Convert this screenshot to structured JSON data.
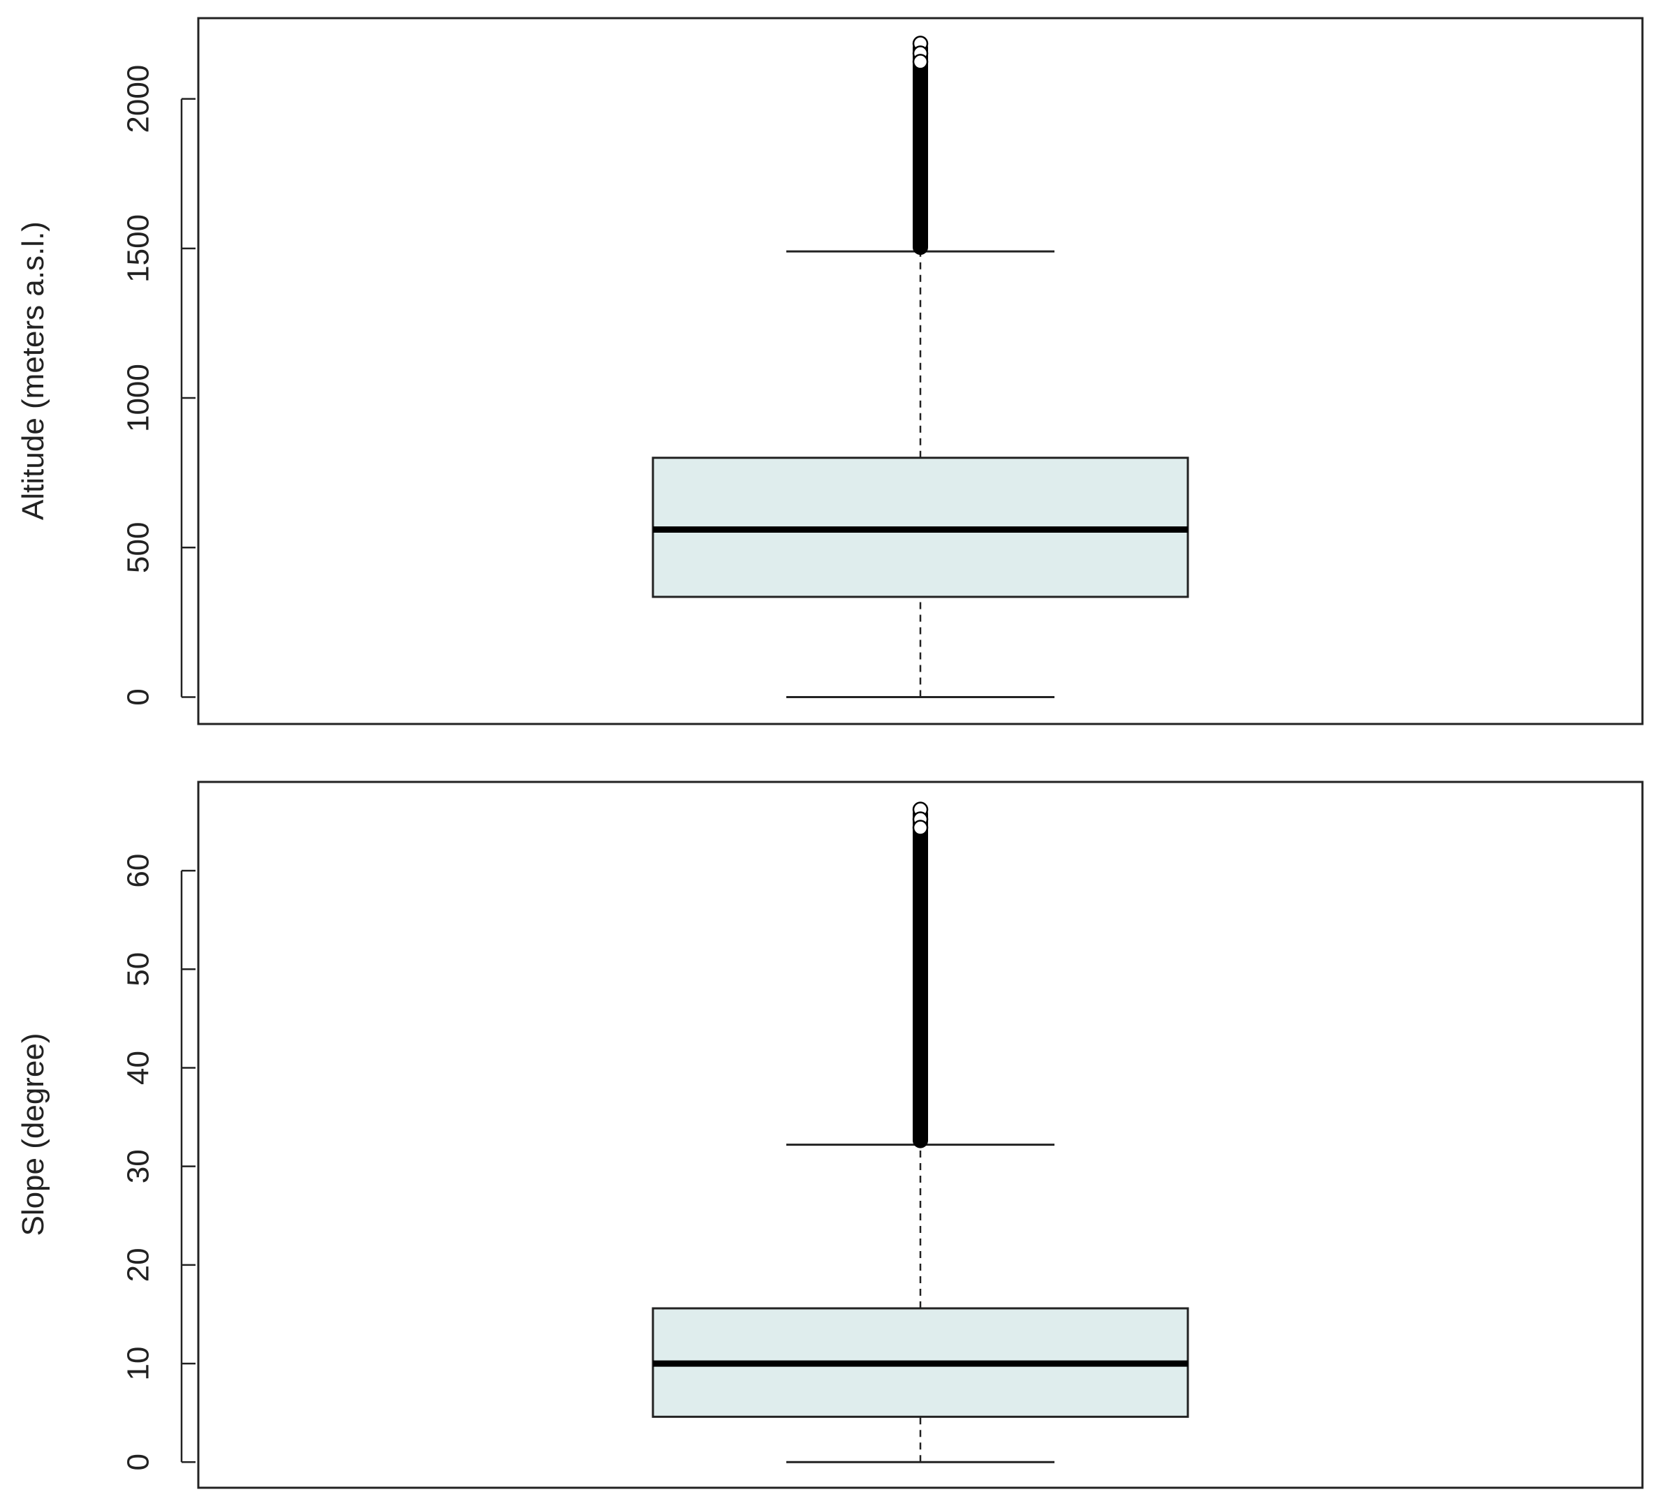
{
  "chart_data": [
    {
      "type": "boxplot",
      "title": "",
      "xlabel": "",
      "ylabel": "Altitude (meters a.s.l.)",
      "ylim": [
        -90,
        2270
      ],
      "yticks": [
        0,
        500,
        1000,
        1500,
        2000
      ],
      "ytick_labels": [
        "0",
        "500",
        "1000",
        "1500",
        "2000"
      ],
      "grid": false,
      "box": {
        "whisker_low": 0,
        "q1": 335,
        "median": 560,
        "q3": 800,
        "whisker_high": 1490,
        "outliers_low": 1490,
        "outliers_high": 2185,
        "fill": "#dfeded"
      }
    },
    {
      "type": "boxplot",
      "title": "",
      "xlabel": "",
      "ylabel": "Slope (degree)",
      "ylim": [
        -2.6,
        69
      ],
      "yticks": [
        0,
        10,
        20,
        30,
        40,
        50,
        60
      ],
      "ytick_labels": [
        "0",
        "10",
        "20",
        "30",
        "40",
        "50",
        "60"
      ],
      "grid": false,
      "box": {
        "whisker_low": 0,
        "q1": 4.6,
        "median": 10,
        "q3": 15.6,
        "whisker_high": 32.2,
        "outliers_low": 32.2,
        "outliers_high": 66.2,
        "fill": "#dfeded"
      }
    }
  ]
}
